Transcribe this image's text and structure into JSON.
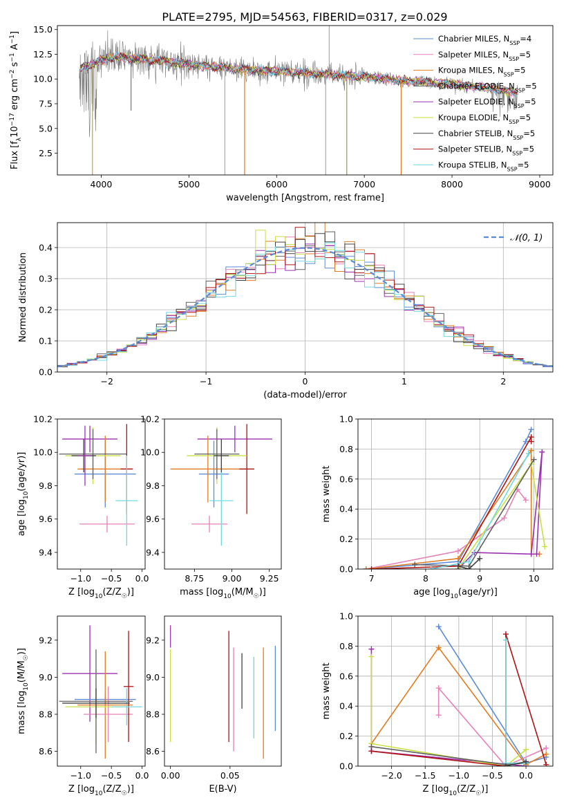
{
  "figure": {
    "title": "PLATE=2795, MJD=54563, FIBERID=0317, z=0.029"
  },
  "colors": {
    "chabrier_miles": "#5b8ad6",
    "salpeter_miles": "#e880b8",
    "kroupa_miles": "#e07b20",
    "chabrier_elodie": "#606060",
    "salpeter_elodie": "#9a30b0",
    "kroupa_elodie": "#c8e040",
    "chabrier_stelib": "#404040",
    "salpeter_stelib": "#b01010",
    "kroupa_stelib": "#70d8e0",
    "gauss": "#5b8ad6"
  },
  "chart_data": [
    {
      "id": "spectrum",
      "type": "line",
      "xlabel": "wavelength [Angstrom, rest frame]",
      "ylabel": "Flux [f",
      "ylabel_sub": "λ",
      "ylabel_rest": "10",
      "ylabel_exp": "−17",
      "ylabel_units": " erg cm",
      "ylabel_units_exp1": "−2",
      "ylabel_units2": " s",
      "ylabel_units_exp2": "−1",
      "ylabel_units3": " A",
      "ylabel_units_exp3": "−1",
      "ylabel_end": "]",
      "xlim": [
        3500,
        9150
      ],
      "ylim": [
        0.3,
        15.4
      ],
      "xticks": [
        "4000",
        "5000",
        "6000",
        "7000",
        "8000",
        "9000"
      ],
      "xtick_values": [
        4000,
        5000,
        6000,
        7000,
        8000,
        9000
      ],
      "yticks": [
        "2.5",
        "5.0",
        "7.5",
        "10.0",
        "12.5",
        "15.0"
      ],
      "ytick_values": [
        2.5,
        5.0,
        7.5,
        10.0,
        12.5,
        15.0
      ],
      "legend_position": "top-right",
      "legend": [
        {
          "label": "Chabrier MILES, N",
          "sub": "SSP",
          "n": "=4",
          "color_key": "chabrier_miles"
        },
        {
          "label": "Salpeter MILES, N",
          "sub": "SSP",
          "n": "=5",
          "color_key": "salpeter_miles"
        },
        {
          "label": "Kroupa MILES, N",
          "sub": "SSP",
          "n": "=5",
          "color_key": "kroupa_miles"
        },
        {
          "label": "Chabrier ELODIE, N",
          "sub": "SSP",
          "n": "=5",
          "color_key": "chabrier_elodie"
        },
        {
          "label": "Salpeter ELODIE, N",
          "sub": "SSP",
          "n": "=5",
          "color_key": "salpeter_elodie"
        },
        {
          "label": "Kroupa ELODIE, N",
          "sub": "SSP",
          "n": "=5",
          "color_key": "kroupa_elodie"
        },
        {
          "label": "Chabrier STELIB, N",
          "sub": "SSP",
          "n": "=5",
          "color_key": "chabrier_stelib"
        },
        {
          "label": "Salpeter STELIB, N",
          "sub": "SSP",
          "n": "=5",
          "color_key": "salpeter_stelib"
        },
        {
          "label": "Kroupa STELIB, N",
          "sub": "SSP",
          "n": "=5",
          "color_key": "kroupa_stelib"
        }
      ],
      "continuum": [
        [
          3750,
          11.0
        ],
        [
          3900,
          11.5
        ],
        [
          4100,
          12.2
        ],
        [
          4500,
          12.0
        ],
        [
          5000,
          11.5
        ],
        [
          5500,
          11.0
        ],
        [
          6000,
          10.8
        ],
        [
          6500,
          10.5
        ],
        [
          7000,
          10.2
        ],
        [
          7500,
          9.8
        ],
        [
          8000,
          9.5
        ],
        [
          8500,
          9.0
        ],
        [
          8750,
          8.6
        ]
      ],
      "spikes": [
        [
          3900,
          0.3
        ],
        [
          4340,
          6.8
        ],
        [
          5410,
          0.3
        ],
        [
          5635,
          0.3
        ],
        [
          6560,
          0.3
        ],
        [
          6800,
          0.3
        ],
        [
          7420,
          0.3
        ],
        [
          6600,
          15.4
        ]
      ]
    },
    {
      "id": "residuals",
      "type": "histogram",
      "xlabel": "(data-model)/error",
      "ylabel": "Normed distribution",
      "xlim": [
        -2.5,
        2.5
      ],
      "ylim": [
        0,
        0.48
      ],
      "xticks": [
        "−2",
        "−1",
        "0",
        "1",
        "2"
      ],
      "xtick_values": [
        -2,
        -1,
        0,
        1,
        2
      ],
      "yticks": [
        "0.0",
        "0.1",
        "0.2",
        "0.3",
        "0.4"
      ],
      "ytick_values": [
        0.0,
        0.1,
        0.2,
        0.3,
        0.4
      ],
      "grid": true,
      "legend_position": "top-right",
      "legend_label": "𝒩(0, 1)",
      "bin_width": 0.1
    },
    {
      "id": "age_vs_z",
      "type": "errorbar",
      "xlabel": "Z [log",
      "xlabel_sub": "10",
      "xlabel_rest": "(Z/Z",
      "xlabel_sun": "☉",
      "xlabel_end": ")]",
      "ylabel": "age  [log",
      "ylabel_sub": "10",
      "ylabel_rest": "(age/yr)]",
      "xlim": [
        -1.38,
        0.05
      ],
      "ylim": [
        9.3,
        10.2
      ],
      "xticks": [
        "−1.0",
        "−0.5",
        "0.0"
      ],
      "xtick_values": [
        -1.0,
        -0.5,
        0.0
      ],
      "yticks": [
        "9.4",
        "9.6",
        "9.8",
        "10.0",
        "10.2"
      ],
      "ytick_values": [
        9.4,
        9.6,
        9.8,
        10.0,
        10.2
      ],
      "points": [
        {
          "color_key": "salpeter_elodie",
          "x": -0.85,
          "xerr": 0.45,
          "y": 10.08,
          "yerr": 0.08
        },
        {
          "color_key": "chabrier_miles",
          "x": -0.6,
          "xerr": 0.5,
          "y": 9.87,
          "yerr": 0.2
        },
        {
          "color_key": "kroupa_miles",
          "x": -0.6,
          "xerr": 0.45,
          "y": 9.9,
          "yerr": 0.2
        },
        {
          "color_key": "salpeter_miles",
          "x": -0.57,
          "xerr": 0.45,
          "y": 9.57,
          "yerr": 0.05
        },
        {
          "color_key": "salpeter_stelib",
          "x": -0.25,
          "xerr": 0.1,
          "y": 9.9,
          "yerr": 0.27
        },
        {
          "color_key": "kroupa_elodie",
          "x": -0.8,
          "xerr": 0.45,
          "y": 9.98,
          "yerr": 0.17
        },
        {
          "color_key": "chabrier_elodie",
          "x": -0.8,
          "xerr": 0.55,
          "y": 9.99,
          "yerr": 0.15
        },
        {
          "color_key": "kroupa_stelib",
          "x": -0.25,
          "xerr": 0.18,
          "y": 9.71,
          "yerr": 0.27
        },
        {
          "color_key": "chabrier_stelib",
          "x": -0.95,
          "xerr": 0.2,
          "y": 9.98,
          "yerr": 0.1
        },
        {
          "color_key": "salpeter_elodie",
          "x": -0.93,
          "xerr": 0.1,
          "y": 9.98,
          "yerr": 0.18
        }
      ]
    },
    {
      "id": "age_vs_mass",
      "type": "errorbar",
      "xlabel": "mass [log",
      "xlabel_sub": "10",
      "xlabel_rest": "(M/M",
      "xlabel_sun": "☉",
      "xlabel_end": ")]",
      "xlim": [
        8.55,
        9.33
      ],
      "ylim": [
        9.3,
        10.2
      ],
      "xticks": [
        "8.75",
        "9.00",
        "9.25"
      ],
      "xtick_values": [
        8.75,
        9.0,
        9.25
      ],
      "yticks": [
        "9.4",
        "9.6",
        "9.8",
        "10.0",
        "10.2"
      ],
      "ytick_values": [
        9.4,
        9.6,
        9.8,
        10.0,
        10.2
      ],
      "points": [
        {
          "color_key": "salpeter_elodie",
          "x": 9.02,
          "xerr": 0.25,
          "y": 10.08,
          "yerr": 0.08
        },
        {
          "color_key": "chabrier_miles",
          "x": 8.88,
          "xerr": 0.1,
          "y": 9.87,
          "yerr": 0.2
        },
        {
          "color_key": "kroupa_miles",
          "x": 8.84,
          "xerr": 0.25,
          "y": 9.9,
          "yerr": 0.2
        },
        {
          "color_key": "salpeter_miles",
          "x": 8.85,
          "xerr": 0.12,
          "y": 9.57,
          "yerr": 0.05
        },
        {
          "color_key": "salpeter_stelib",
          "x": 9.1,
          "xerr": 0.05,
          "y": 9.9,
          "yerr": 0.27
        },
        {
          "color_key": "kroupa_elodie",
          "x": 8.9,
          "xerr": 0.2,
          "y": 9.98,
          "yerr": 0.17
        },
        {
          "color_key": "chabrier_elodie",
          "x": 8.9,
          "xerr": 0.15,
          "y": 9.99,
          "yerr": 0.15
        },
        {
          "color_key": "kroupa_stelib",
          "x": 8.93,
          "xerr": 0.08,
          "y": 9.71,
          "yerr": 0.27
        },
        {
          "color_key": "chabrier_stelib",
          "x": 8.93,
          "xerr": 0.05,
          "y": 9.98,
          "yerr": 0.1
        }
      ]
    },
    {
      "id": "massweight_vs_age",
      "type": "line",
      "xlabel": "age  [log",
      "xlabel_sub": "10",
      "xlabel_rest": "(age/yr)]",
      "ylabel": "mass weight",
      "xlim": [
        6.75,
        10.35
      ],
      "ylim": [
        0,
        1.0
      ],
      "xticks": [
        "7",
        "8",
        "9",
        "10"
      ],
      "xtick_values": [
        7,
        8,
        9,
        10
      ],
      "yticks": [
        "0.0",
        "0.2",
        "0.4",
        "0.6",
        "0.8",
        "1.0"
      ],
      "ytick_values": [
        0.0,
        0.2,
        0.4,
        0.6,
        0.8,
        1.0
      ],
      "grid": true,
      "series": [
        {
          "color_key": "chabrier_miles",
          "x": [
            6.9,
            8.6,
            9.85,
            9.95
          ],
          "y": [
            0.0,
            0.05,
            0.85,
            0.93
          ]
        },
        {
          "color_key": "salpeter_miles",
          "x": [
            6.9,
            8.6,
            9.45,
            9.7,
            9.85
          ],
          "y": [
            0.0,
            0.12,
            0.34,
            0.53,
            0.46
          ]
        },
        {
          "color_key": "kroupa_miles",
          "x": [
            6.9,
            8.6,
            9.95,
            9.95,
            10.1
          ],
          "y": [
            0.0,
            0.07,
            0.79,
            0.1,
            0.1
          ]
        },
        {
          "color_key": "salpeter_elodie",
          "x": [
            8.6,
            8.9,
            9.95,
            10.15,
            10.05
          ],
          "y": [
            0.0,
            0.11,
            0.1,
            0.78,
            0.1
          ]
        },
        {
          "color_key": "kroupa_elodie",
          "x": [
            8.6,
            9.95,
            10.2
          ],
          "y": [
            0.0,
            0.7,
            0.15
          ]
        },
        {
          "color_key": "chabrier_elodie",
          "x": [
            7.8,
            8.8,
            10.0
          ],
          "y": [
            0.03,
            0.02,
            0.73
          ]
        },
        {
          "color_key": "salpeter_stelib",
          "x": [
            7.0,
            8.6,
            9.95,
            9.95
          ],
          "y": [
            0.0,
            0.02,
            0.88,
            0.85
          ]
        },
        {
          "color_key": "kroupa_stelib",
          "x": [
            8.1,
            8.8,
            9.9
          ],
          "y": [
            0.0,
            0.05,
            0.77
          ]
        },
        {
          "color_key": "chabrier_stelib",
          "x": [
            8.6,
            8.8,
            9.0
          ],
          "y": [
            0.02,
            0.0,
            0.07
          ]
        }
      ]
    },
    {
      "id": "mass_vs_z",
      "type": "errorbar",
      "xlabel": "Z [log",
      "xlabel_sub": "10",
      "xlabel_rest": "(Z/Z",
      "xlabel_sun": "☉",
      "xlabel_end": ")]",
      "ylabel": "mass [log",
      "ylabel_sub": "10",
      "ylabel_rest": "(M/M",
      "ylabel_sun": "☉",
      "ylabel_end": ")]",
      "xlim": [
        -1.38,
        0.05
      ],
      "ylim": [
        8.52,
        9.33
      ],
      "xticks": [
        "−1.0",
        "−0.5",
        "0.0"
      ],
      "xtick_values": [
        -1.0,
        -0.5,
        0.0
      ],
      "yticks": [
        "8.6",
        "8.8",
        "9.0",
        "9.2"
      ],
      "ytick_values": [
        8.6,
        8.8,
        9.0,
        9.2
      ],
      "points": [
        {
          "color_key": "salpeter_elodie",
          "x": -0.85,
          "xerr": 0.45,
          "y": 9.02,
          "yerr": 0.26
        },
        {
          "color_key": "chabrier_miles",
          "x": -0.6,
          "xerr": 0.5,
          "y": 8.88,
          "yerr": 0.02
        },
        {
          "color_key": "kroupa_miles",
          "x": -0.6,
          "xerr": 0.45,
          "y": 8.85,
          "yerr": 0.29
        },
        {
          "color_key": "salpeter_miles",
          "x": -0.55,
          "xerr": 0.4,
          "y": 8.8,
          "yerr": 0.15
        },
        {
          "color_key": "salpeter_stelib",
          "x": -0.22,
          "xerr": 0.08,
          "y": 8.95,
          "yerr": 0.3
        },
        {
          "color_key": "kroupa_elodie",
          "x": -0.75,
          "xerr": 0.5,
          "y": 8.84,
          "yerr": 0.2
        },
        {
          "color_key": "chabrier_elodie",
          "x": -0.75,
          "xerr": 0.6,
          "y": 8.87,
          "yerr": 0.28
        },
        {
          "color_key": "kroupa_stelib",
          "x": -0.25,
          "xerr": 0.25,
          "y": 8.84,
          "yerr": 0.1
        },
        {
          "color_key": "chabrier_stelib",
          "x": -0.75,
          "xerr": 0.55,
          "y": 8.86,
          "yerr": 0.08
        }
      ]
    },
    {
      "id": "mass_vs_ebv",
      "type": "errorbar",
      "xlabel": "E(B-V)",
      "xlim": [
        -0.005,
        0.093
      ],
      "ylim": [
        8.52,
        9.33
      ],
      "xticks": [
        "0.00",
        "0.05"
      ],
      "xtick_values": [
        0.0,
        0.05
      ],
      "yticks": [
        "8.6",
        "8.8",
        "9.0",
        "9.2"
      ],
      "ytick_values": [
        8.6,
        8.8,
        9.0,
        9.2
      ],
      "points": [
        {
          "color_key": "salpeter_elodie",
          "x": 0.0,
          "xerr": 0,
          "y": 9.22,
          "yerr": 0.06
        },
        {
          "color_key": "kroupa_elodie",
          "x": 0.0,
          "xerr": 0,
          "y": 8.9,
          "yerr": 0.25
        },
        {
          "color_key": "salpeter_stelib",
          "x": 0.049,
          "xerr": 0,
          "y": 8.95,
          "yerr": 0.3
        },
        {
          "color_key": "chabrier_stelib",
          "x": 0.06,
          "xerr": 0,
          "y": 8.98,
          "yerr": 0.15
        },
        {
          "color_key": "kroupa_stelib",
          "x": 0.07,
          "xerr": 0,
          "y": 8.89,
          "yerr": 0.22
        },
        {
          "color_key": "kroupa_miles",
          "x": 0.078,
          "xerr": 0,
          "y": 8.86,
          "yerr": 0.3
        },
        {
          "color_key": "salpeter_miles",
          "x": 0.053,
          "xerr": 0,
          "y": 8.88,
          "yerr": 0.28
        },
        {
          "color_key": "chabrier_miles",
          "x": 0.088,
          "xerr": 0,
          "y": 8.94,
          "yerr": 0.23
        }
      ]
    },
    {
      "id": "massweight_vs_z",
      "type": "line",
      "xlabel": "Z [log",
      "xlabel_sub": "10",
      "xlabel_rest": "(Z/Z",
      "xlabel_sun": "☉",
      "xlabel_end": ")]",
      "ylabel": "mass weight",
      "xlim": [
        -2.5,
        0.4
      ],
      "ylim": [
        0,
        1.0
      ],
      "xticks": [
        "−2.0",
        "−1.5",
        "−1.0",
        "−0.5",
        "0.0"
      ],
      "xtick_values": [
        -2.0,
        -1.5,
        -1.0,
        -0.5,
        0.0
      ],
      "yticks": [
        "0.0",
        "0.2",
        "0.4",
        "0.6",
        "0.8",
        "1.0"
      ],
      "ytick_values": [
        0.0,
        0.2,
        0.4,
        0.6,
        0.8,
        1.0
      ],
      "grid": true,
      "series": [
        {
          "color_key": "chabrier_miles",
          "x": [
            -1.3,
            0.0,
            0.3
          ],
          "y": [
            0.93,
            0.02,
            0.06
          ]
        },
        {
          "color_key": "salpeter_miles",
          "x": [
            -1.3,
            -1.3,
            -0.3,
            0.3
          ],
          "y": [
            0.34,
            0.52,
            0.0,
            0.12
          ]
        },
        {
          "color_key": "kroupa_miles",
          "x": [
            -2.3,
            -1.3,
            0.0,
            0.3
          ],
          "y": [
            0.15,
            0.79,
            0.01,
            0.08
          ]
        },
        {
          "color_key": "salpeter_elodie",
          "x": [
            -2.3,
            -2.3,
            -2.3,
            0.0
          ],
          "y": [
            0.78,
            0.1,
            0.1,
            0.0
          ]
        },
        {
          "color_key": "kroupa_elodie",
          "x": [
            -2.3,
            -2.3,
            -0.3,
            0.0
          ],
          "y": [
            0.73,
            0.15,
            0.0,
            0.11
          ]
        },
        {
          "color_key": "chabrier_elodie",
          "x": [
            -2.3,
            -0.3,
            0.0
          ],
          "y": [
            0.13,
            0.01,
            0.02
          ]
        },
        {
          "color_key": "salpeter_stelib",
          "x": [
            -2.3,
            -0.3,
            -0.3,
            0.3
          ],
          "y": [
            0.1,
            0.0,
            0.88,
            0.01
          ]
        },
        {
          "color_key": "kroupa_stelib",
          "x": [
            -0.3,
            -0.3,
            0.0
          ],
          "y": [
            0.84,
            0.02,
            0.02
          ]
        },
        {
          "color_key": "chabrier_stelib",
          "x": [
            -0.3,
            0.0
          ],
          "y": [
            0.0,
            0.03
          ]
        }
      ]
    }
  ]
}
